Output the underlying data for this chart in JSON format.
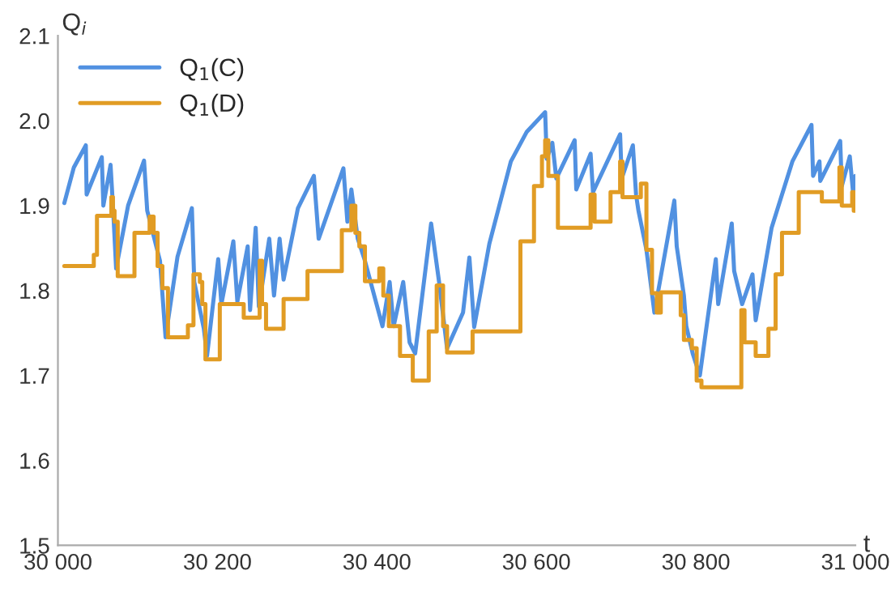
{
  "chart_data": {
    "type": "line",
    "xlabel": "t",
    "ylabel": "Q$_{i}$",
    "xlim": [
      30000,
      31000
    ],
    "ylim": [
      1.5,
      2.1
    ],
    "xticks": [
      {
        "value": 30000,
        "label": "30 000"
      },
      {
        "value": 30200,
        "label": "30 200"
      },
      {
        "value": 30400,
        "label": "30 400"
      },
      {
        "value": 30600,
        "label": "30 600"
      },
      {
        "value": 30800,
        "label": "30 800"
      },
      {
        "value": 31000,
        "label": "31 000"
      }
    ],
    "yticks": [
      1.5,
      1.6,
      1.7,
      1.8,
      1.9,
      {
        "value": 2.0,
        "label": "2.0"
      },
      2.1
    ],
    "grid": false,
    "legend": "top left",
    "marker": "none",
    "line_style": "solid",
    "series": [
      {
        "name": "Q$_{1}$(C)",
        "color": "#5191e1",
        "x": [
          30008,
          30020,
          30035,
          30036,
          30055,
          30057,
          30066,
          30069,
          30073,
          30088,
          30108,
          30112,
          30128,
          30135,
          30150,
          30168,
          30171,
          30183,
          30187,
          30201,
          30205,
          30220,
          30225,
          30238,
          30241,
          30248,
          30252,
          30265,
          30271,
          30278,
          30283,
          30301,
          30321,
          30327,
          30358,
          30363,
          30368,
          30376,
          30385,
          30407,
          30416,
          30421,
          30433,
          30441,
          30448,
          30468,
          30478,
          30488,
          30508,
          30516,
          30522,
          30541,
          30568,
          30588,
          30611,
          30613,
          30620,
          30625,
          30648,
          30650,
          30668,
          30671,
          30705,
          30707,
          30721,
          30725,
          30728,
          30738,
          30748,
          30773,
          30776,
          30785,
          30788,
          30796,
          30805,
          30825,
          30828,
          30845,
          30848,
          30858,
          30871,
          30875,
          30895,
          30921,
          30945,
          30947,
          30955,
          30956,
          30981,
          30983,
          30993,
          30998,
          31000
        ],
        "values": [
          1.903,
          1.945,
          1.971,
          1.913,
          1.957,
          1.9,
          1.948,
          1.9,
          1.826,
          1.9,
          1.953,
          1.894,
          1.835,
          1.745,
          1.84,
          1.897,
          1.81,
          1.755,
          1.723,
          1.837,
          1.784,
          1.858,
          1.787,
          1.852,
          1.777,
          1.874,
          1.781,
          1.861,
          1.794,
          1.861,
          1.813,
          1.897,
          1.935,
          1.861,
          1.944,
          1.881,
          1.919,
          1.861,
          1.835,
          1.758,
          1.81,
          1.758,
          1.81,
          1.739,
          1.726,
          1.879,
          1.81,
          1.732,
          1.774,
          1.839,
          1.757,
          1.855,
          1.952,
          1.987,
          2.01,
          1.955,
          1.974,
          1.932,
          1.977,
          1.919,
          1.961,
          1.916,
          1.984,
          1.932,
          1.971,
          1.913,
          1.894,
          1.848,
          1.774,
          1.906,
          1.852,
          1.794,
          1.758,
          1.726,
          1.7,
          1.837,
          1.784,
          1.879,
          1.823,
          1.784,
          1.819,
          1.765,
          1.874,
          1.952,
          1.995,
          1.935,
          1.952,
          1.929,
          1.976,
          1.923,
          1.958,
          1.906,
          1.935
        ]
      },
      {
        "name": "Q$_{1}$(D)",
        "type": "step",
        "color": "#e19c24",
        "x": [
          30008,
          30045,
          30049,
          30067,
          30069,
          30071,
          30075,
          30096,
          30115,
          30120,
          30125,
          30131,
          30138,
          30163,
          30170,
          30178,
          30181,
          30185,
          30203,
          30233,
          30253,
          30256,
          30261,
          30283,
          30313,
          30356,
          30368,
          30373,
          30378,
          30385,
          30403,
          30408,
          30415,
          30429,
          30445,
          30465,
          30475,
          30483,
          30488,
          30520,
          30580,
          30597,
          30607,
          30611,
          30615,
          30627,
          30668,
          30673,
          30693,
          30705,
          30708,
          30731,
          30738,
          30745,
          30751,
          30756,
          30781,
          30785,
          30795,
          30801,
          30807,
          30857,
          30861,
          30875,
          30891,
          30900,
          30908,
          30929,
          30958,
          30980,
          30983,
          30996,
          30998,
          31000
        ],
        "values": [
          1.829,
          1.842,
          1.888,
          1.91,
          1.894,
          1.881,
          1.817,
          1.868,
          1.887,
          1.868,
          1.829,
          1.803,
          1.745,
          1.759,
          1.819,
          1.81,
          1.784,
          1.719,
          1.784,
          1.768,
          1.835,
          1.784,
          1.755,
          1.79,
          1.823,
          1.871,
          1.9,
          1.868,
          1.852,
          1.811,
          1.826,
          1.794,
          1.758,
          1.723,
          1.694,
          1.752,
          1.806,
          1.758,
          1.727,
          1.752,
          1.858,
          1.923,
          1.958,
          1.977,
          1.935,
          1.874,
          1.913,
          1.881,
          1.916,
          1.952,
          1.91,
          1.926,
          1.848,
          1.797,
          1.774,
          1.798,
          1.771,
          1.742,
          1.732,
          1.694,
          1.686,
          1.777,
          1.739,
          1.723,
          1.755,
          1.819,
          1.868,
          1.916,
          1.905,
          1.945,
          1.9,
          1.916,
          1.894,
          1.894
        ]
      }
    ]
  }
}
